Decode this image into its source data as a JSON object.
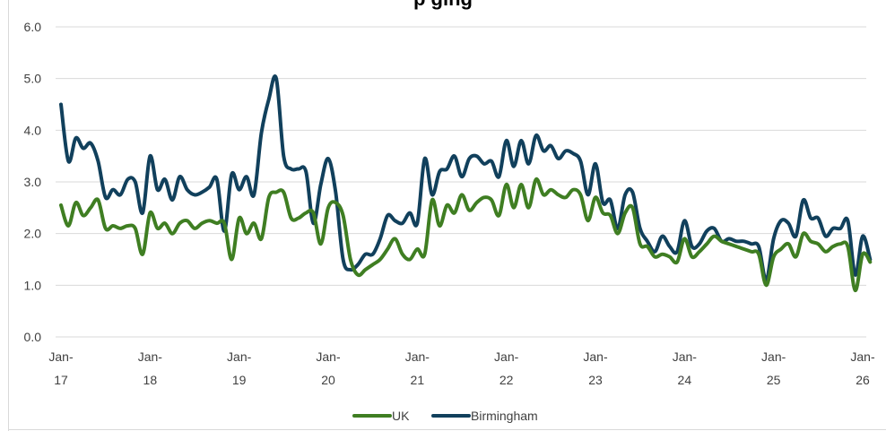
{
  "chart_data": {
    "type": "line",
    "title": "p            ging",
    "xlabel": "",
    "ylabel": "",
    "ylim": [
      0,
      6
    ],
    "yticks": [
      "0.0",
      "1.0",
      "2.0",
      "3.0",
      "4.0",
      "5.0",
      "6.0"
    ],
    "xticks": [
      {
        "line1": "Jan-",
        "line2": "17"
      },
      {
        "line1": "Jan-",
        "line2": "18"
      },
      {
        "line1": "Jan-",
        "line2": "19"
      },
      {
        "line1": "Jan-",
        "line2": "20"
      },
      {
        "line1": "Jan-",
        "line2": "21"
      },
      {
        "line1": "Jan-",
        "line2": "22"
      },
      {
        "line1": "Jan-",
        "line2": "23"
      },
      {
        "line1": "Jan-",
        "line2": "24"
      },
      {
        "line1": "Jan-",
        "line2": "25"
      },
      {
        "line1": "Jan-",
        "line2": "26"
      }
    ],
    "x_start": "2017-01",
    "grid": true,
    "legend_position": "bottom",
    "series": [
      {
        "name": "UK",
        "color": "#3f7e22",
        "values": [
          2.55,
          2.15,
          2.6,
          2.35,
          2.5,
          2.65,
          2.1,
          2.15,
          2.1,
          2.15,
          2.1,
          1.6,
          2.4,
          2.1,
          2.2,
          2.0,
          2.2,
          2.25,
          2.1,
          2.2,
          2.25,
          2.2,
          2.2,
          1.5,
          2.3,
          2.0,
          2.2,
          1.9,
          2.7,
          2.8,
          2.8,
          2.3,
          2.3,
          2.4,
          2.4,
          1.8,
          2.5,
          2.6,
          2.35,
          1.5,
          1.2,
          1.3,
          1.4,
          1.5,
          1.7,
          1.9,
          1.6,
          1.5,
          1.7,
          1.6,
          2.65,
          2.15,
          2.55,
          2.4,
          2.75,
          2.45,
          2.6,
          2.7,
          2.65,
          2.35,
          2.95,
          2.5,
          2.95,
          2.5,
          3.05,
          2.75,
          2.85,
          2.75,
          2.7,
          2.85,
          2.75,
          2.25,
          2.7,
          2.4,
          2.35,
          2.0,
          2.4,
          2.5,
          1.8,
          1.75,
          1.55,
          1.6,
          1.55,
          1.45,
          1.9,
          1.55,
          1.65,
          1.8,
          1.95,
          1.85,
          1.8,
          1.75,
          1.7,
          1.65,
          1.6,
          1.0,
          1.55,
          1.7,
          1.8,
          1.55,
          2.0,
          1.85,
          1.8,
          1.65,
          1.75,
          1.8,
          1.75,
          0.9,
          1.6,
          1.45
        ]
      },
      {
        "name": "Birmingham",
        "color": "#11405c",
        "values": [
          4.5,
          3.4,
          3.85,
          3.65,
          3.75,
          3.4,
          2.7,
          2.85,
          2.75,
          3.05,
          3.0,
          2.4,
          3.5,
          2.85,
          3.05,
          2.65,
          3.1,
          2.85,
          2.75,
          2.8,
          2.9,
          3.05,
          2.05,
          3.15,
          2.85,
          3.1,
          2.75,
          3.95,
          4.6,
          5.0,
          3.5,
          3.25,
          3.25,
          3.2,
          2.2,
          2.95,
          3.45,
          2.8,
          1.5,
          1.3,
          1.4,
          1.6,
          1.6,
          1.9,
          2.35,
          2.25,
          2.2,
          2.4,
          2.2,
          3.45,
          2.75,
          3.2,
          3.25,
          3.5,
          3.1,
          3.45,
          3.5,
          3.35,
          3.4,
          3.1,
          3.8,
          3.3,
          3.8,
          3.35,
          3.9,
          3.6,
          3.7,
          3.45,
          3.6,
          3.55,
          3.4,
          2.75,
          3.35,
          2.6,
          2.65,
          2.1,
          2.75,
          2.8,
          2.1,
          1.85,
          1.65,
          1.95,
          1.75,
          1.65,
          2.25,
          1.75,
          1.8,
          2.05,
          2.1,
          1.85,
          1.9,
          1.85,
          1.85,
          1.8,
          1.75,
          1.1,
          1.9,
          2.25,
          2.2,
          1.95,
          2.65,
          2.3,
          2.3,
          1.95,
          2.1,
          2.1,
          2.25,
          1.2,
          1.95,
          1.5
        ]
      }
    ]
  }
}
